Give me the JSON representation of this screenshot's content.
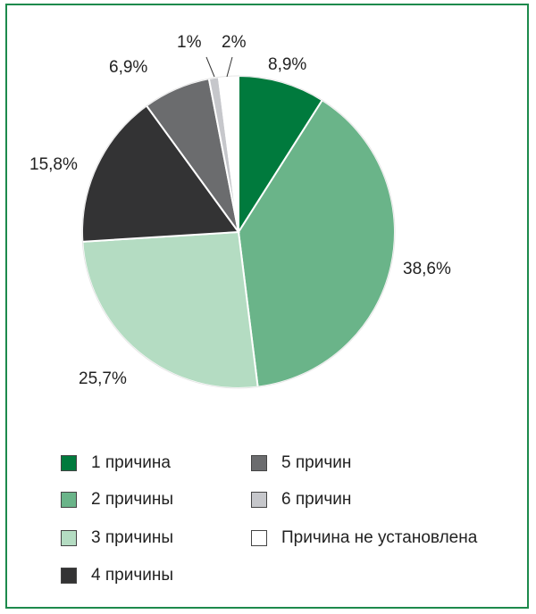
{
  "chart_data": {
    "type": "pie",
    "title": "",
    "start_angle_deg": 0,
    "direction": "clockwise",
    "slices": [
      {
        "label": "1 причина",
        "value": 8.9,
        "value_label": "8,9%",
        "color": "#007a3d"
      },
      {
        "label": "2 причины",
        "value": 38.6,
        "value_label": "38,6%",
        "color": "#6ab489"
      },
      {
        "label": "3 причины",
        "value": 25.7,
        "value_label": "25,7%",
        "color": "#b4dcc2"
      },
      {
        "label": "4 причины",
        "value": 15.8,
        "value_label": "15,8%",
        "color": "#333334"
      },
      {
        "label": "5 причин",
        "value": 6.9,
        "value_label": "6,9%",
        "color": "#6b6c6e"
      },
      {
        "label": "6 причин",
        "value": 1,
        "value_label": "1%",
        "color": "#c6c7cb"
      },
      {
        "label": "Причина не установлена",
        "value": 2,
        "value_label": "2%",
        "color": "#ffffff"
      }
    ],
    "legend": {
      "column_1": [
        "1 причина",
        "2 причины",
        "3 причины",
        "4 причины"
      ],
      "column_2": [
        "5 причин",
        "6 причин",
        "Причина не установлена"
      ]
    }
  },
  "colors": {
    "frame": "#1d8a4c"
  }
}
